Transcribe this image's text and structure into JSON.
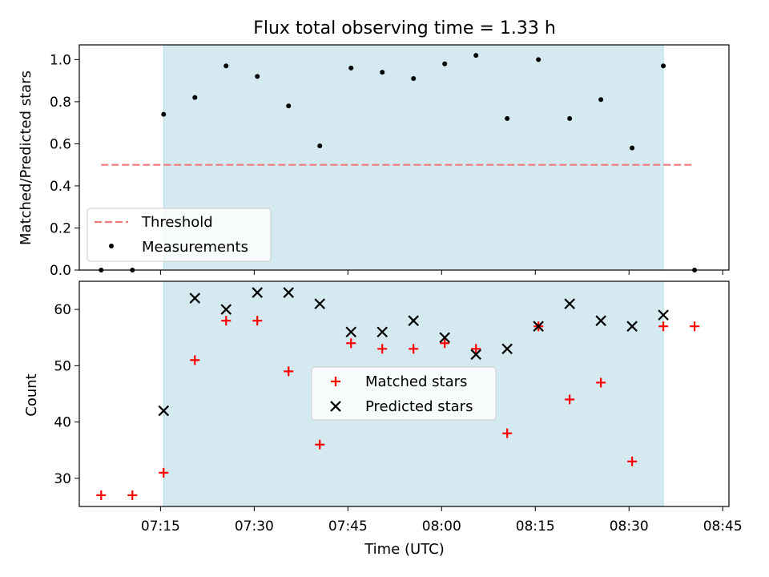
{
  "figure": {
    "title": "Flux total observing time = 1.33 h"
  },
  "chart_data": [
    {
      "type": "scatter",
      "title": "Flux total observing time = 1.33 h",
      "xlabel": "",
      "ylabel": "Matched/Predicted stars",
      "xlim": [
        "07:02",
        "08:46"
      ],
      "ylim": [
        0,
        1.07
      ],
      "yticks": [
        "0.0",
        "0.2",
        "0.4",
        "0.6",
        "0.8",
        "1.0"
      ],
      "shaded_region": {
        "x_start": "07:15:30",
        "x_end": "08:35:30",
        "color": "#d4eaf0"
      },
      "threshold": {
        "name": "Threshold",
        "value": 0.5,
        "x_start": "07:05:30",
        "x_end": "08:40:30",
        "color": "#f07a7a"
      },
      "series": [
        {
          "name": "Measurements",
          "marker": "dot",
          "color": "#000000",
          "x": [
            "07:05:30",
            "07:10:30",
            "07:15:30",
            "07:20:30",
            "07:25:30",
            "07:30:30",
            "07:35:30",
            "07:40:30",
            "07:45:30",
            "07:50:30",
            "07:55:30",
            "08:00:30",
            "08:05:30",
            "08:10:30",
            "08:15:30",
            "08:20:30",
            "08:25:30",
            "08:30:30",
            "08:35:30",
            "08:40:30"
          ],
          "y": [
            0.0,
            0.0,
            0.74,
            0.82,
            0.97,
            0.92,
            0.78,
            0.59,
            0.96,
            0.94,
            0.91,
            0.98,
            1.02,
            0.72,
            1.0,
            0.72,
            0.81,
            0.58,
            0.97,
            0.0
          ]
        }
      ],
      "legend": {
        "location": "lower-left",
        "entries": [
          "Threshold",
          "Measurements"
        ]
      }
    },
    {
      "type": "scatter",
      "xlabel": "Time (UTC)",
      "ylabel": "Count",
      "xlim": [
        "07:02",
        "08:46"
      ],
      "ylim": [
        25,
        65
      ],
      "xticks": [
        "07:15",
        "07:30",
        "07:45",
        "08:00",
        "08:15",
        "08:30",
        "08:45"
      ],
      "yticks": [
        "30",
        "40",
        "50",
        "60"
      ],
      "shaded_region": {
        "x_start": "07:15:30",
        "x_end": "08:35:30",
        "color": "#d4eaf0"
      },
      "series": [
        {
          "name": "Matched stars",
          "marker": "plus",
          "color": "#ff0000",
          "x": [
            "07:05:30",
            "07:10:30",
            "07:15:30",
            "07:20:30",
            "07:25:30",
            "07:30:30",
            "07:35:30",
            "07:40:30",
            "07:45:30",
            "07:50:30",
            "07:55:30",
            "08:00:30",
            "08:05:30",
            "08:10:30",
            "08:15:30",
            "08:20:30",
            "08:25:30",
            "08:30:30",
            "08:35:30",
            "08:40:30"
          ],
          "y": [
            27,
            27,
            31,
            51,
            58,
            58,
            49,
            36,
            54,
            53,
            53,
            54,
            53,
            38,
            57,
            44,
            47,
            33,
            57,
            57
          ]
        },
        {
          "name": "Predicted stars",
          "marker": "x",
          "color": "#000000",
          "x": [
            "07:15:30",
            "07:20:30",
            "07:25:30",
            "07:30:30",
            "07:35:30",
            "07:40:30",
            "07:45:30",
            "07:50:30",
            "07:55:30",
            "08:00:30",
            "08:05:30",
            "08:10:30",
            "08:15:30",
            "08:20:30",
            "08:25:30",
            "08:30:30",
            "08:35:30"
          ],
          "y": [
            42,
            62,
            60,
            63,
            63,
            61,
            56,
            56,
            58,
            55,
            52,
            53,
            57,
            61,
            58,
            57,
            59
          ]
        }
      ],
      "legend": {
        "location": "center",
        "entries": [
          "Matched stars",
          "Predicted stars"
        ]
      }
    }
  ]
}
